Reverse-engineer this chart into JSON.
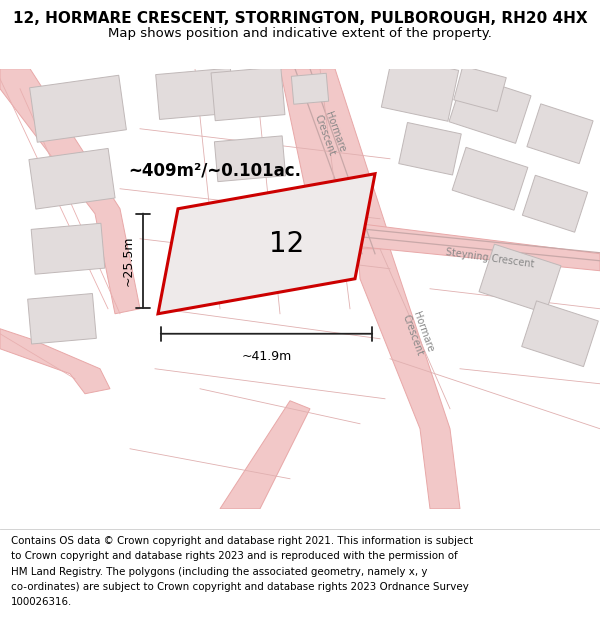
{
  "title": "12, HORMARE CRESCENT, STORRINGTON, PULBOROUGH, RH20 4HX",
  "subtitle": "Map shows position and indicative extent of the property.",
  "footer_lines": [
    "Contains OS data © Crown copyright and database right 2021. This information is subject",
    "to Crown copyright and database rights 2023 and is reproduced with the permission of",
    "HM Land Registry. The polygons (including the associated geometry, namely x, y",
    "co-ordinates) are subject to Crown copyright and database rights 2023 Ordnance Survey",
    "100026316."
  ],
  "map_bg": "#f9f6f6",
  "road_color": "#f2c8c8",
  "road_edge": "#e8a8a8",
  "road_line_color": "#c8a0a0",
  "building_fill": "#e2dcdc",
  "building_edge": "#c0b8b8",
  "property_fill": "#eeeaea",
  "property_edge": "#cc0000",
  "property_lw": 2.2,
  "street_color": "#b0a8a8",
  "measure_color": "#222222",
  "label_12": "12",
  "area_label": "~409m²/~0.101ac.",
  "dim_w": "~41.9m",
  "dim_h": "~25.5m",
  "title_fontsize": 11,
  "subtitle_fontsize": 9.5,
  "footer_fontsize": 7.4,
  "road_label_color": "#888888",
  "road_label_fs": 7
}
